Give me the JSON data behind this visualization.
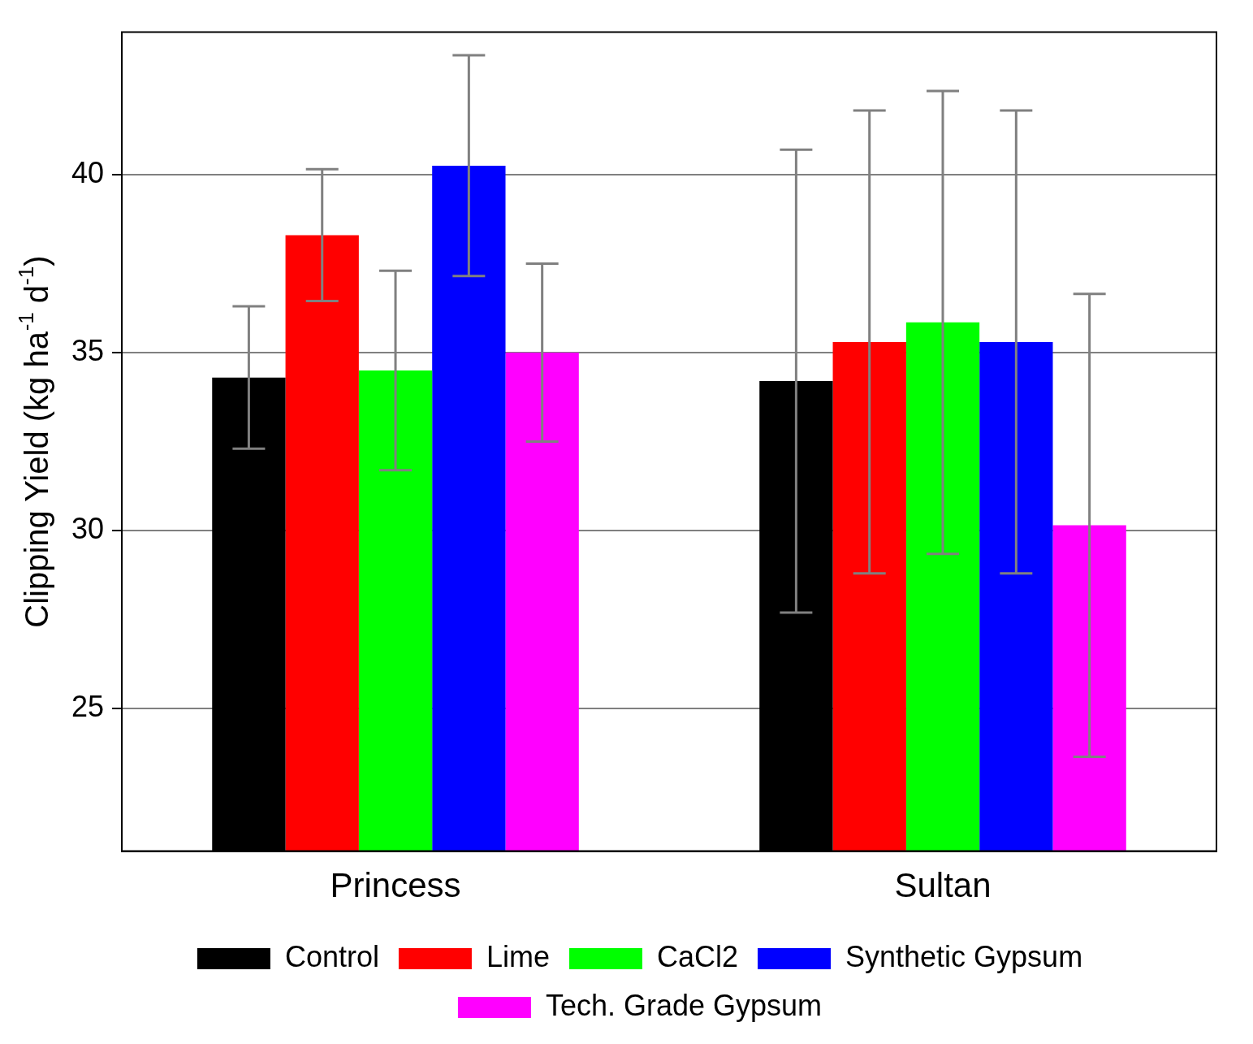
{
  "chart_data": {
    "type": "bar",
    "ylabel": "Clipping Yield (kg ha$^{-1}$ d$^{-1}$)",
    "categories": [
      "Princess",
      "Sultan"
    ],
    "series": [
      {
        "name": "Control",
        "color": "#000000",
        "values": [
          34.3,
          34.2
        ],
        "errors": [
          2.0,
          6.5
        ]
      },
      {
        "name": "Lime",
        "color": "#ff0000",
        "values": [
          38.3,
          35.3
        ],
        "errors": [
          1.85,
          6.5
        ]
      },
      {
        "name": "CaCl2",
        "color": "#00ff00",
        "values": [
          34.5,
          35.85
        ],
        "errors": [
          2.8,
          6.5
        ]
      },
      {
        "name": "Synthetic Gypsum",
        "color": "#0000ff",
        "values": [
          40.25,
          35.3
        ],
        "errors": [
          3.1,
          6.5
        ]
      },
      {
        "name": "Tech. Grade Gypsum",
        "color": "#ff00ff",
        "values": [
          35.0,
          30.15
        ],
        "errors": [
          2.5,
          6.5
        ]
      }
    ],
    "ylim": [
      21,
      44
    ],
    "yticks": [
      25,
      30,
      35,
      40
    ],
    "grid": "y",
    "legend": "bottom"
  }
}
